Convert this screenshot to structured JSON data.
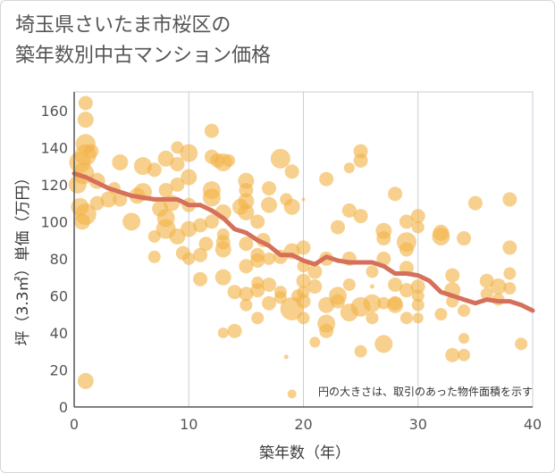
{
  "title": {
    "line1": "埼玉県さいたま市桜区の",
    "line2": "築年数別中古マンション価格"
  },
  "colors": {
    "bubble": "#f2b347",
    "line": "#d5705a",
    "grid": "#c3cfd8",
    "axis": "#555555"
  },
  "chart_data": {
    "type": "scatter",
    "title": "埼玉県さいたま市桜区の築年数別中古マンション価格",
    "xlabel": "築年数（年）",
    "ylabel": "坪（3.3㎡）単価（万円）",
    "xlim": [
      0,
      40
    ],
    "ylim": [
      0,
      170
    ],
    "xticks": [
      0,
      10,
      20,
      30,
      40
    ],
    "yticks": [
      0,
      20,
      40,
      60,
      80,
      100,
      120,
      140,
      160
    ],
    "grid": true,
    "note": "円の大きさは、取引のあった物件面積を示す",
    "series": [
      {
        "kind": "bubble",
        "points": [
          [
            0.3,
            120,
            10
          ],
          [
            0.5,
            132,
            12
          ],
          [
            0.5,
            108,
            10
          ],
          [
            0.7,
            100,
            9
          ],
          [
            0.8,
            126,
            12
          ],
          [
            1,
            164,
            8
          ],
          [
            1,
            155,
            9
          ],
          [
            1,
            142,
            11
          ],
          [
            1,
            136,
            12
          ],
          [
            1,
            104,
            12
          ],
          [
            1,
            14,
            9
          ],
          [
            1.5,
            138,
            8
          ],
          [
            2,
            122,
            9
          ],
          [
            2,
            110,
            8
          ],
          [
            3,
            112,
            9
          ],
          [
            3.5,
            118,
            7
          ],
          [
            4,
            132,
            9
          ],
          [
            4,
            112,
            8
          ],
          [
            5,
            100,
            10
          ],
          [
            5.5,
            114,
            9
          ],
          [
            6,
            130,
            10
          ],
          [
            6,
            116,
            10
          ],
          [
            7,
            128,
            8
          ],
          [
            7,
            92,
            7
          ],
          [
            7,
            81,
            7
          ],
          [
            7.5,
            107,
            9
          ],
          [
            8,
            134,
            9
          ],
          [
            8,
            117,
            8
          ],
          [
            8,
            102,
            10
          ],
          [
            8,
            96,
            11
          ],
          [
            8.5,
            110,
            9
          ],
          [
            9,
            140,
            7
          ],
          [
            9,
            131,
            8
          ],
          [
            9,
            120,
            8
          ],
          [
            9,
            92,
            9
          ],
          [
            9.5,
            83,
            8
          ],
          [
            10,
            137,
            10
          ],
          [
            10,
            124,
            9
          ],
          [
            10,
            109,
            8
          ],
          [
            10,
            96,
            9
          ],
          [
            10,
            80,
            7
          ],
          [
            11,
            98,
            8
          ],
          [
            11,
            82,
            8
          ],
          [
            11,
            69,
            8
          ],
          [
            11.5,
            88,
            8
          ],
          [
            12,
            149,
            8
          ],
          [
            12,
            135,
            8
          ],
          [
            12,
            117,
            10
          ],
          [
            12,
            113,
            10
          ],
          [
            12,
            100,
            8
          ],
          [
            12.5,
            133,
            8
          ],
          [
            13,
            132,
            10
          ],
          [
            13,
            105,
            9
          ],
          [
            13,
            93,
            7
          ],
          [
            13,
            89,
            8
          ],
          [
            13,
            85,
            9
          ],
          [
            13,
            70,
            9
          ],
          [
            13,
            40,
            6
          ],
          [
            13.5,
            133,
            7
          ],
          [
            14,
            41,
            8
          ],
          [
            14,
            62,
            8
          ],
          [
            14.5,
            108,
            9
          ],
          [
            15,
            122,
            9
          ],
          [
            15,
            117,
            8
          ],
          [
            15,
            111,
            9
          ],
          [
            15,
            105,
            9
          ],
          [
            15,
            88,
            8
          ],
          [
            15,
            76,
            8
          ],
          [
            15,
            61,
            8
          ],
          [
            15,
            55,
            7
          ],
          [
            16,
            100,
            8
          ],
          [
            16,
            82,
            8
          ],
          [
            16,
            79,
            8
          ],
          [
            16,
            67,
            7
          ],
          [
            16,
            63,
            8
          ],
          [
            16,
            48,
            7
          ],
          [
            16.5,
            90,
            8
          ],
          [
            17,
            118,
            8
          ],
          [
            17,
            109,
            9
          ],
          [
            17,
            80,
            7
          ],
          [
            17,
            66,
            8
          ],
          [
            17,
            56,
            8
          ],
          [
            18,
            134,
            11
          ],
          [
            18,
            81,
            8
          ],
          [
            18,
            62,
            7
          ],
          [
            18,
            59,
            7
          ],
          [
            18.5,
            112,
            7
          ],
          [
            18.5,
            27,
            2.5
          ],
          [
            19,
            127,
            8
          ],
          [
            19,
            108,
            9
          ],
          [
            19,
            84,
            9
          ],
          [
            19,
            53,
            13
          ],
          [
            19,
            7,
            5
          ],
          [
            19.5,
            60,
            7
          ],
          [
            20,
            86,
            8
          ],
          [
            20,
            76,
            7
          ],
          [
            20,
            68,
            8
          ],
          [
            20,
            62,
            7
          ],
          [
            20,
            57,
            8
          ],
          [
            20,
            48,
            7
          ],
          [
            20,
            112,
            2
          ],
          [
            21,
            73,
            8
          ],
          [
            21,
            65,
            8
          ],
          [
            21,
            35,
            6
          ],
          [
            22,
            123,
            8
          ],
          [
            22,
            80,
            8
          ],
          [
            22,
            55,
            9
          ],
          [
            22,
            45,
            10
          ],
          [
            22,
            41,
            8
          ],
          [
            23,
            97,
            8
          ],
          [
            23,
            60,
            10
          ],
          [
            23,
            57,
            8
          ],
          [
            24,
            106,
            8
          ],
          [
            24,
            80,
            8
          ],
          [
            24,
            66,
            7
          ],
          [
            24,
            51,
            10
          ],
          [
            24,
            129,
            6
          ],
          [
            25,
            138,
            8
          ],
          [
            25,
            133,
            8
          ],
          [
            25,
            103,
            8
          ],
          [
            25,
            54,
            11
          ],
          [
            25,
            30,
            7
          ],
          [
            26,
            73,
            7
          ],
          [
            26,
            56,
            10
          ],
          [
            26,
            48,
            7
          ],
          [
            26,
            65,
            2.5
          ],
          [
            27,
            95,
            9
          ],
          [
            27,
            91,
            8
          ],
          [
            27,
            80,
            8
          ],
          [
            27,
            56,
            7
          ],
          [
            27,
            34,
            10
          ],
          [
            28,
            115,
            8
          ],
          [
            28,
            66,
            8
          ],
          [
            28,
            56,
            8
          ],
          [
            28,
            55,
            9
          ],
          [
            29,
            100,
            8
          ],
          [
            29,
            89,
            11
          ],
          [
            29,
            85,
            8
          ],
          [
            29,
            75,
            8
          ],
          [
            29,
            63,
            8
          ],
          [
            29,
            48,
            7
          ],
          [
            30,
            103,
            8
          ],
          [
            30,
            97,
            7
          ],
          [
            30,
            65,
            8
          ],
          [
            30,
            60,
            7
          ],
          [
            30,
            55,
            7
          ],
          [
            30,
            48,
            6
          ],
          [
            32,
            94,
            9
          ],
          [
            32,
            92,
            10
          ],
          [
            32,
            50,
            7
          ],
          [
            33,
            71,
            8
          ],
          [
            33,
            63,
            9
          ],
          [
            33,
            57,
            7
          ],
          [
            33,
            28,
            8
          ],
          [
            34,
            91,
            8
          ],
          [
            34,
            52,
            7
          ],
          [
            34,
            37,
            6
          ],
          [
            34,
            28,
            7
          ],
          [
            35,
            110,
            8
          ],
          [
            36,
            68,
            8
          ],
          [
            36,
            61,
            7
          ],
          [
            37,
            65,
            9
          ],
          [
            37,
            58,
            7
          ],
          [
            38,
            112,
            8
          ],
          [
            38,
            86,
            8
          ],
          [
            38,
            72,
            7
          ],
          [
            38,
            64,
            7
          ],
          [
            39,
            34,
            7
          ]
        ]
      },
      {
        "kind": "trend-line",
        "x": [
          0,
          1,
          2,
          3,
          4,
          5,
          6,
          7,
          8,
          9,
          10,
          11,
          12,
          13,
          14,
          15,
          16,
          17,
          18,
          19,
          20,
          21,
          22,
          23,
          24,
          25,
          26,
          27,
          28,
          29,
          30,
          31,
          32,
          33,
          34,
          35,
          36,
          37,
          38,
          39,
          40
        ],
        "y": [
          126,
          124,
          121,
          118,
          116,
          114,
          113,
          112,
          112,
          112,
          109,
          109,
          106,
          102,
          96,
          94,
          90,
          87,
          82,
          82,
          79,
          77,
          81,
          79,
          78,
          78,
          78,
          76,
          72,
          72,
          71,
          68,
          62,
          60,
          58,
          56,
          58,
          57,
          57,
          55,
          52
        ]
      }
    ]
  }
}
